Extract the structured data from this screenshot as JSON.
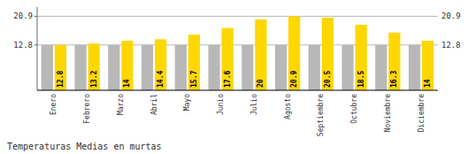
{
  "chart_data": {
    "type": "bar",
    "title": "Temperaturas Medias en murtas",
    "categories": [
      "Enero",
      "Febrero",
      "Marzo",
      "Abril",
      "Mayo",
      "Junio",
      "Julio",
      "Agosto",
      "Septiembre",
      "Octubre",
      "Noviembre",
      "Diciembre"
    ],
    "series": [
      {
        "color": "#B8B8B8",
        "values": [
          12.8,
          12.8,
          12.8,
          12.8,
          12.8,
          12.8,
          12.8,
          12.8,
          12.8,
          12.8,
          12.8,
          12.8
        ]
      },
      {
        "color": "#FFD700",
        "values": [
          12.8,
          13.2,
          14.0,
          14.4,
          15.7,
          17.6,
          20.0,
          20.9,
          20.5,
          18.5,
          16.3,
          14.0
        ],
        "data_labels": true
      }
    ],
    "ylim": [
      0.0,
      23.5
    ],
    "yticks": [
      12.8,
      20.9
    ],
    "grid": true
  }
}
